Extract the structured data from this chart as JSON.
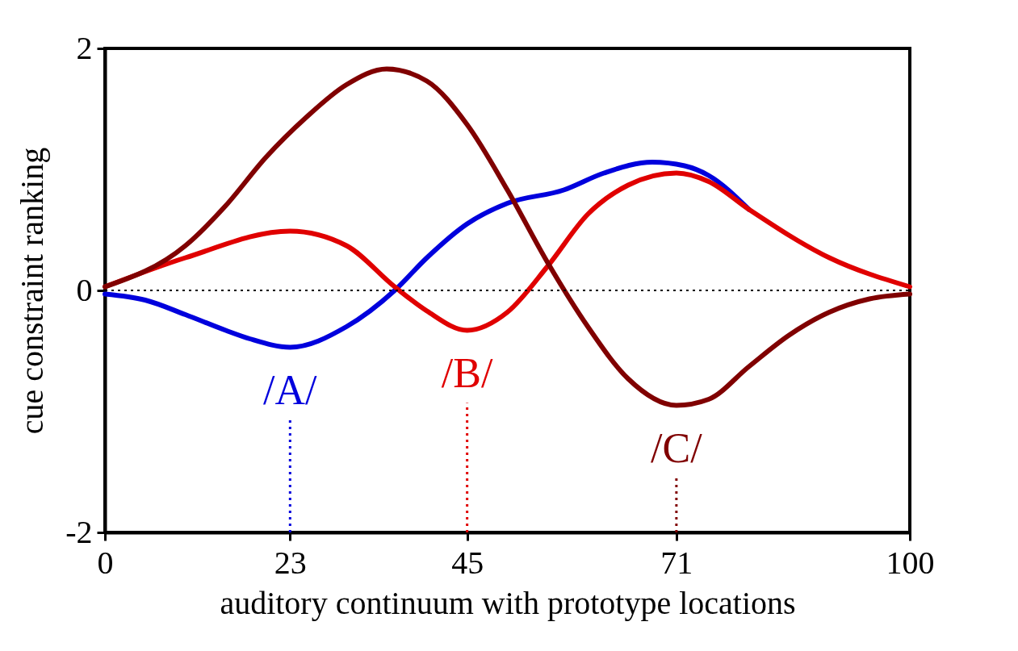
{
  "chart_data": {
    "type": "line",
    "xlabel": "auditory continuum with prototype locations",
    "ylabel": "cue constraint ranking",
    "xlim": [
      0,
      100
    ],
    "ylim": [
      -2,
      2
    ],
    "xticks": [
      0,
      23,
      45,
      71,
      100
    ],
    "yticks": [
      -2,
      0,
      2
    ],
    "grid": false,
    "legend": false,
    "line_style": "solid",
    "marker": "none",
    "series": [
      {
        "color": "#0000dd",
        "x": [
          0,
          5,
          10,
          15,
          18,
          23,
          30,
          36,
          40,
          45,
          50,
          57,
          62,
          68,
          72,
          75,
          80
        ],
        "values": [
          -0.03,
          -0.08,
          -0.2,
          -0.33,
          -0.4,
          -0.47,
          -0.3,
          0,
          0.27,
          0.55,
          0.72,
          0.83,
          0.97,
          1.06,
          1.03,
          0.95,
          0.67
        ]
      },
      {
        "color": "#e00000",
        "x": [
          0,
          10,
          23,
          30,
          36,
          40,
          45,
          50,
          55,
          60,
          65,
          71,
          75,
          80,
          90,
          100
        ],
        "values": [
          0.03,
          0.27,
          0.49,
          0.37,
          0.03,
          -0.17,
          -0.33,
          -0.18,
          0.2,
          0.63,
          0.87,
          0.97,
          0.9,
          0.67,
          0.27,
          0.03
        ]
      },
      {
        "color": "#800000",
        "x": [
          0,
          10,
          15,
          20,
          25,
          30,
          35,
          40,
          45,
          50,
          55,
          60,
          65,
          71,
          75,
          80,
          85,
          90,
          95,
          100
        ],
        "values": [
          0.03,
          0.37,
          0.7,
          1.1,
          1.43,
          1.7,
          1.83,
          1.73,
          1.37,
          0.83,
          0.23,
          -0.3,
          -0.73,
          -0.95,
          -0.9,
          -0.63,
          -0.37,
          -0.18,
          -0.07,
          -0.03
        ]
      }
    ],
    "ref_lines": [
      {
        "axis": "y",
        "value": 0,
        "color": "#000000",
        "line_style": "dotted"
      },
      {
        "axis": "x",
        "value": 23,
        "label": "/A/",
        "color": "#0000dd",
        "line_style": "dotted"
      },
      {
        "axis": "x",
        "value": 45,
        "label": "/B/",
        "color": "#e00000",
        "line_style": "dotted"
      },
      {
        "axis": "x",
        "value": 71,
        "label": "/C/",
        "color": "#800000",
        "line_style": "dotted"
      }
    ]
  }
}
